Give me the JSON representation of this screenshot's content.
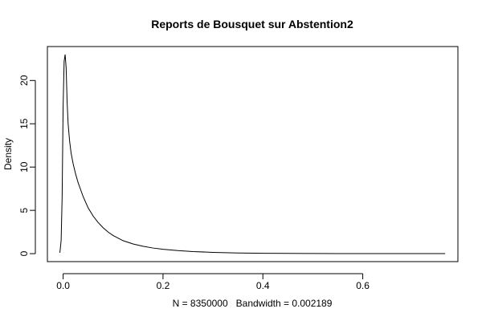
{
  "chart_data": {
    "type": "line",
    "title": "Reports de Bousquet sur Abstention2",
    "xlabel": "N = 8350000   Bandwidth = 0.002189",
    "ylabel": "Density",
    "xlim": [
      -0.0315,
      0.7905
    ],
    "ylim": [
      -0.92,
      23.92
    ],
    "x_ticks": [
      0.0,
      0.2,
      0.4,
      0.6
    ],
    "x_tick_labels": [
      "0.0",
      "0.2",
      "0.4",
      "0.6"
    ],
    "y_ticks": [
      0,
      5,
      10,
      15,
      20
    ],
    "y_tick_labels": [
      "0",
      "5",
      "10",
      "15",
      "20"
    ],
    "grid": false,
    "series": [
      {
        "name": "density",
        "x": [
          -0.0065,
          -0.004,
          -0.002,
          0.0,
          0.002,
          0.004,
          0.006,
          0.008,
          0.01,
          0.013,
          0.016,
          0.02,
          0.025,
          0.03,
          0.035,
          0.04,
          0.05,
          0.06,
          0.07,
          0.08,
          0.09,
          0.1,
          0.12,
          0.14,
          0.16,
          0.18,
          0.2,
          0.23,
          0.26,
          0.3,
          0.35,
          0.4,
          0.45,
          0.5,
          0.55,
          0.6,
          0.65,
          0.7,
          0.765
        ],
        "y": [
          0.1,
          1.5,
          6.5,
          17.0,
          22.2,
          23.0,
          21.5,
          17.5,
          15.0,
          13.0,
          11.6,
          10.4,
          9.2,
          8.2,
          7.4,
          6.6,
          5.3,
          4.35,
          3.6,
          3.0,
          2.5,
          2.1,
          1.5,
          1.12,
          0.85,
          0.65,
          0.5,
          0.35,
          0.24,
          0.15,
          0.08,
          0.045,
          0.025,
          0.014,
          0.008,
          0.005,
          0.003,
          0.002,
          0.001
        ]
      }
    ]
  }
}
